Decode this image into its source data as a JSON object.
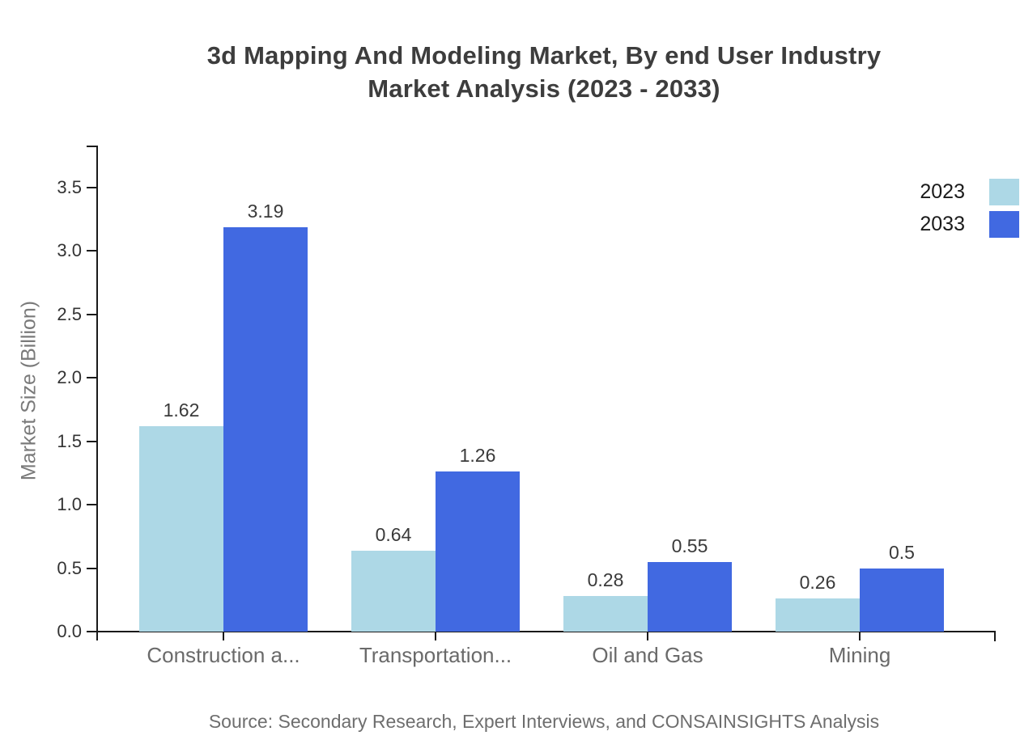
{
  "header": {
    "title_line1": "3d Mapping And Modeling Market, By end User Industry",
    "title_line2": "Market Analysis (2023 - 2033)"
  },
  "chart_data": {
    "type": "bar",
    "title": "3d Mapping And Modeling Market, By end User Industry Market Analysis (2023 - 2033)",
    "categories": [
      "Construction a...",
      "Transportation...",
      "Oil and Gas",
      "Mining"
    ],
    "series": [
      {
        "name": "2023",
        "color": "#ADD8E6",
        "values": [
          1.62,
          0.64,
          0.28,
          0.26
        ]
      },
      {
        "name": "2033",
        "color": "#4169E1",
        "values": [
          3.19,
          1.26,
          0.55,
          0.5
        ]
      }
    ],
    "xlabel": "",
    "ylabel": "Market Size (Billion)",
    "ylim": [
      0,
      3.8
    ],
    "yticks": [
      0.0,
      0.5,
      1.0,
      1.5,
      2.0,
      2.5,
      3.0,
      3.5
    ],
    "grid": false,
    "legend_position": "top-right",
    "value_labels": true
  },
  "footer": {
    "source": "Source: Secondary Research, Expert Interviews, and CONSAINSIGHTS Analysis"
  },
  "colors": {
    "bar_2023": "#ADD8E6",
    "bar_2033": "#4169E1",
    "axis": "#1a1a1a",
    "title_text": "#3d3d3d",
    "tick_text": "#333333",
    "muted_text": "#6e6e6e"
  }
}
